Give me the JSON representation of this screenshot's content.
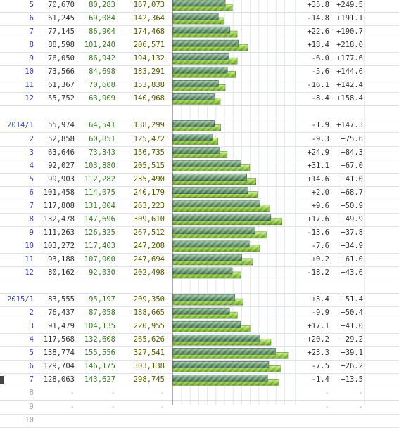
{
  "chart_data": {
    "type": "table",
    "title": "",
    "columns": [
      "",
      "",
      "",
      "",
      "",
      ""
    ],
    "series": [
      {
        "name": "",
        "color": "#5d8f66"
      },
      {
        "name": "",
        "color": "#8ac436"
      }
    ],
    "rows": [
      {
        "month": "5",
        "a": "70,670",
        "b": "80,283",
        "c": "167,073",
        "va": 70670,
        "vb": 80283,
        "p1": "+35.8",
        "p2": "+249.5"
      },
      {
        "month": "6",
        "a": "61,245",
        "b": "69,084",
        "c": "142,364",
        "va": 61245,
        "vb": 69084,
        "p1": "-14.8",
        "p2": "+191.1"
      },
      {
        "month": "7",
        "a": "77,145",
        "b": "86,904",
        "c": "174,468",
        "va": 77145,
        "vb": 86904,
        "p1": "+22.6",
        "p2": "+190.7"
      },
      {
        "month": "8",
        "a": "88,598",
        "b": "101,240",
        "c": "206,571",
        "va": 88598,
        "vb": 101240,
        "p1": "+18.4",
        "p2": "+218.0"
      },
      {
        "month": "9",
        "a": "76,050",
        "b": "86,942",
        "c": "194,132",
        "va": 76050,
        "vb": 86942,
        "p1": "-6.0",
        "p2": "+177.6"
      },
      {
        "month": "10",
        "a": "73,566",
        "b": "84,698",
        "c": "183,291",
        "va": 73566,
        "vb": 84698,
        "p1": "-5.6",
        "p2": "+144.6"
      },
      {
        "month": "11",
        "a": "61,367",
        "b": "70,608",
        "c": "153,838",
        "va": 61367,
        "vb": 70608,
        "p1": "-16.1",
        "p2": "+142.4"
      },
      {
        "month": "12",
        "a": "55,752",
        "b": "63,909",
        "c": "140,968",
        "va": 55752,
        "vb": 63909,
        "p1": "-8.4",
        "p2": "+158.4"
      },
      {
        "spacer": true
      },
      {
        "month": "2014/1",
        "a": "55,974",
        "b": "64,541",
        "c": "138,299",
        "va": 55974,
        "vb": 64541,
        "p1": "-1.9",
        "p2": "+147.3"
      },
      {
        "month": "2",
        "a": "52,858",
        "b": "60,851",
        "c": "125,472",
        "va": 52858,
        "vb": 60851,
        "p1": "-9.3",
        "p2": "+75.6"
      },
      {
        "month": "3",
        "a": "63,646",
        "b": "73,343",
        "c": "156,735",
        "va": 63646,
        "vb": 73343,
        "p1": "+24.9",
        "p2": "+84.3"
      },
      {
        "month": "4",
        "a": "92,027",
        "b": "103,880",
        "c": "205,515",
        "va": 92027,
        "vb": 103880,
        "p1": "+31.1",
        "p2": "+67.0"
      },
      {
        "month": "5",
        "a": "99,903",
        "b": "112,282",
        "c": "235,490",
        "va": 99903,
        "vb": 112282,
        "p1": "+14.6",
        "p2": "+41.0"
      },
      {
        "month": "6",
        "a": "101,458",
        "b": "114,075",
        "c": "240,179",
        "va": 101458,
        "vb": 114075,
        "p1": "+2.0",
        "p2": "+68.7"
      },
      {
        "month": "7",
        "a": "117,808",
        "b": "131,004",
        "c": "263,223",
        "va": 117808,
        "vb": 131004,
        "p1": "+9.6",
        "p2": "+50.9"
      },
      {
        "month": "8",
        "a": "132,478",
        "b": "147,696",
        "c": "309,610",
        "va": 132478,
        "vb": 147696,
        "p1": "+17.6",
        "p2": "+49.9"
      },
      {
        "month": "9",
        "a": "111,263",
        "b": "126,325",
        "c": "267,512",
        "va": 111263,
        "vb": 126325,
        "p1": "-13.6",
        "p2": "+37.8"
      },
      {
        "month": "10",
        "a": "103,272",
        "b": "117,403",
        "c": "247,208",
        "va": 103272,
        "vb": 117403,
        "p1": "-7.6",
        "p2": "+34.9"
      },
      {
        "month": "11",
        "a": "93,188",
        "b": "107,900",
        "c": "247,694",
        "va": 93188,
        "vb": 107900,
        "p1": "+0.2",
        "p2": "+61.0"
      },
      {
        "month": "12",
        "a": "80,162",
        "b": "92,030",
        "c": "202,498",
        "va": 80162,
        "vb": 92030,
        "p1": "-18.2",
        "p2": "+43.6"
      },
      {
        "spacer": true
      },
      {
        "month": "2015/1",
        "a": "83,555",
        "b": "95,197",
        "c": "209,350",
        "va": 83555,
        "vb": 95197,
        "p1": "+3.4",
        "p2": "+51.4"
      },
      {
        "month": "2",
        "a": "76,437",
        "b": "87,058",
        "c": "188,665",
        "va": 76437,
        "vb": 87058,
        "p1": "-9.9",
        "p2": "+50.4"
      },
      {
        "month": "3",
        "a": "91,479",
        "b": "104,135",
        "c": "220,955",
        "va": 91479,
        "vb": 104135,
        "p1": "+17.1",
        "p2": "+41.0"
      },
      {
        "month": "4",
        "a": "117,568",
        "b": "132,608",
        "c": "265,626",
        "va": 117568,
        "vb": 132608,
        "p1": "+20.2",
        "p2": "+29.2"
      },
      {
        "month": "5",
        "a": "138,774",
        "b": "155,556",
        "c": "327,541",
        "va": 138774,
        "vb": 155556,
        "p1": "+23.3",
        "p2": "+39.1"
      },
      {
        "month": "6",
        "a": "129,704",
        "b": "146,175",
        "c": "303,138",
        "va": 129704,
        "vb": 146175,
        "p1": "-7.5",
        "p2": "+26.2"
      },
      {
        "month": "7",
        "a": "128,063",
        "b": "143,627",
        "c": "298,745",
        "va": 128063,
        "vb": 143627,
        "p1": "-1.4",
        "p2": "+13.5",
        "marked": true
      },
      {
        "month": "8",
        "a": "-",
        "b": "-",
        "c": "-",
        "p1": "-",
        "p2": "-",
        "empty": true
      },
      {
        "month": "9",
        "a": "-",
        "b": "-",
        "c": "-",
        "p1": "-",
        "p2": "-",
        "empty": true
      },
      {
        "month": "10",
        "a": "",
        "b": "",
        "c": "",
        "p1": "",
        "p2": "",
        "empty": true
      }
    ]
  }
}
